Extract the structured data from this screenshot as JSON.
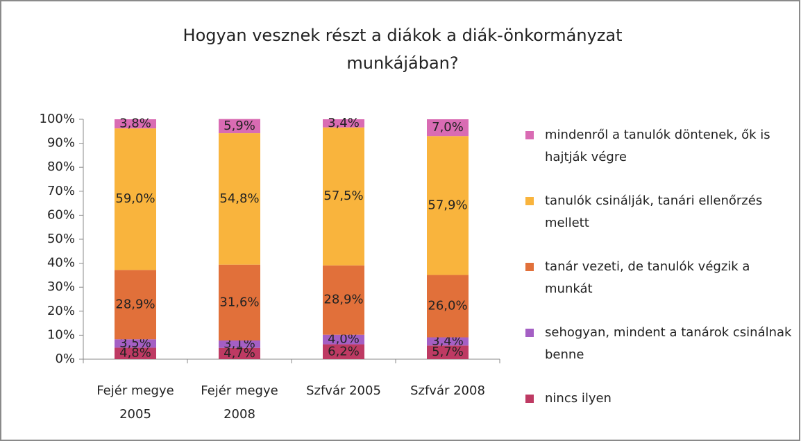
{
  "chart_data": {
    "type": "stacked_bar",
    "title": "Hogyan vesznek részt a diákok a diák-önkormányzat munkájában?",
    "categories": [
      "Fejér megye 2005",
      "Fejér megye 2008",
      "Szfvár 2005",
      "Szfvár 2008"
    ],
    "series": [
      {
        "name": "nincs ilyen",
        "color": "#be3a63",
        "values": [
          4.8,
          4.7,
          6.2,
          5.7
        ],
        "value_labels": [
          "4,8%",
          "4,7%",
          "6,2%",
          "5,7%"
        ]
      },
      {
        "name": "sehogyan, mindent a tanárok csinálnak benne",
        "color": "#a45fc4",
        "values": [
          3.5,
          3.1,
          4.0,
          3.4
        ],
        "value_labels": [
          "3,5%",
          "3,1%",
          "4,0%",
          "3,4%"
        ]
      },
      {
        "name": "tanár vezeti, de tanulók végzik a munkát",
        "color": "#e1703a",
        "values": [
          28.9,
          31.6,
          28.9,
          26.0
        ],
        "value_labels": [
          "28,9%",
          "31,6%",
          "28,9%",
          "26,0%"
        ]
      },
      {
        "name": "tanulók csinálják, tanári ellenőrzés mellett",
        "color": "#f9b43d",
        "values": [
          59.0,
          54.8,
          57.5,
          57.9
        ],
        "value_labels": [
          "59,0%",
          "54,8%",
          "57,5%",
          "57,9%"
        ]
      },
      {
        "name": "mindenről a tanulók döntenek, ők is hajtják végre",
        "color": "#d96bb3",
        "values": [
          3.8,
          5.9,
          3.4,
          7.0
        ],
        "value_labels": [
          "3,8%",
          "5,9%",
          "3,4%",
          "7,0%"
        ]
      }
    ],
    "ylim": [
      0,
      100
    ],
    "yticks": [
      {
        "value": 0,
        "label": "0%"
      },
      {
        "value": 10,
        "label": "10%"
      },
      {
        "value": 20,
        "label": "20%"
      },
      {
        "value": 30,
        "label": "30%"
      },
      {
        "value": 40,
        "label": "40%"
      },
      {
        "value": 50,
        "label": "50%"
      },
      {
        "value": 60,
        "label": "60%"
      },
      {
        "value": 70,
        "label": "70%"
      },
      {
        "value": 80,
        "label": "80%"
      },
      {
        "value": 90,
        "label": "90%"
      },
      {
        "value": 100,
        "label": "100%"
      }
    ],
    "grid": false,
    "legend": "right"
  }
}
